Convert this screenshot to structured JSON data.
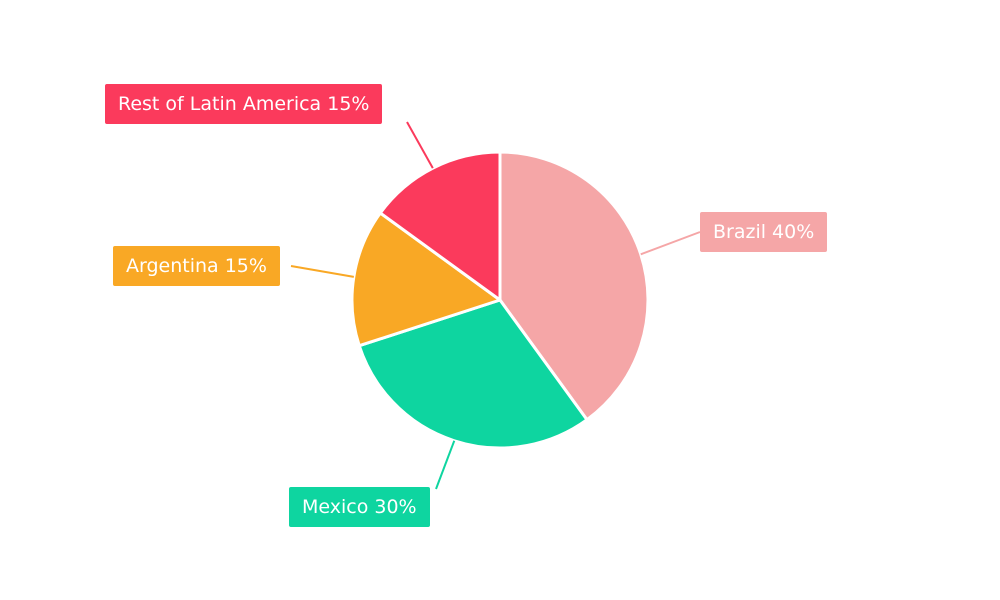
{
  "chart_data": {
    "type": "pie",
    "title": "",
    "background": "#FFFFFF",
    "direction": "clockwise",
    "start_angle_deg": 0,
    "legend_position": "none",
    "labels_style": "boxed-with-leader-lines",
    "slices": [
      {
        "label": "Brazil",
        "value": 40,
        "display": "Brazil 40%",
        "color": "#F5A6A7"
      },
      {
        "label": "Mexico",
        "value": 30,
        "display": "Mexico 30%",
        "color": "#0ED5A0"
      },
      {
        "label": "Argentina",
        "value": 15,
        "display": "Argentina 15%",
        "color": "#F9A825"
      },
      {
        "label": "Rest of Latin America",
        "value": 15,
        "display": "Rest of Latin America 15%",
        "color": "#FB3A5C"
      }
    ]
  }
}
